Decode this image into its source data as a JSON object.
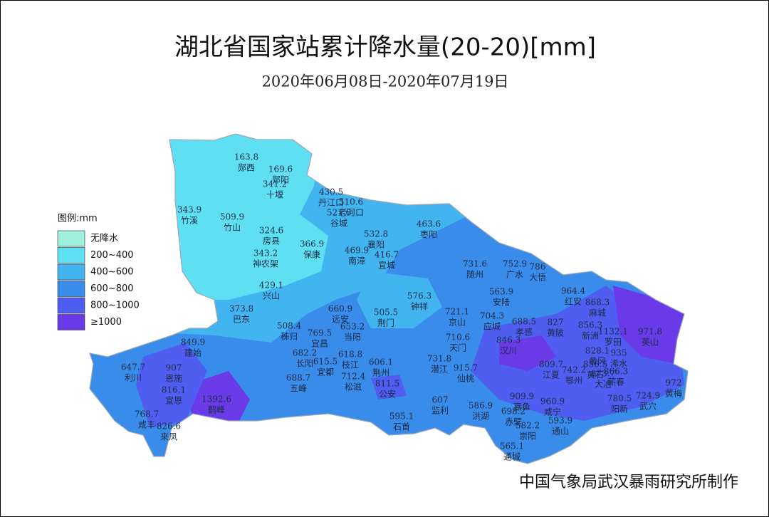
{
  "header": {
    "title": "湖北省国家站累计降水量(20-20)[mm]",
    "subtitle": "2020年06月08日-2020年07月19日"
  },
  "legend": {
    "title": "图例:mm",
    "items": [
      {
        "label": "无降水",
        "color": "#9ff0dc"
      },
      {
        "label": "200~400",
        "color": "#5fe0f2"
      },
      {
        "label": "400~600",
        "color": "#42b4f0"
      },
      {
        "label": "600~800",
        "color": "#3a8ceb"
      },
      {
        "label": "800~1000",
        "color": "#4f5ef0"
      },
      {
        "label": "≥1000",
        "color": "#6a3ae8"
      }
    ]
  },
  "stations": [
    {
      "value": "163.8",
      "name": "郧西"
    },
    {
      "value": "169.6",
      "name": "郧阳"
    },
    {
      "value": "341.2",
      "name": "十堰"
    },
    {
      "value": "343.9",
      "name": "竹溪"
    },
    {
      "value": "509.9",
      "name": "竹山"
    },
    {
      "value": "324.6",
      "name": "房县"
    },
    {
      "value": "366.9",
      "name": "保康"
    },
    {
      "value": "343.2",
      "name": "神农架"
    },
    {
      "value": "430.5",
      "name": "丹江口"
    },
    {
      "value": "510.6",
      "name": "老河口"
    },
    {
      "value": "521.6",
      "name": "谷城"
    },
    {
      "value": "532.8",
      "name": "襄阳"
    },
    {
      "value": "469.9",
      "name": "南漳"
    },
    {
      "value": "416.7",
      "name": "宜城"
    },
    {
      "value": "463.6",
      "name": "枣阳"
    },
    {
      "value": "429.1",
      "name": "兴山"
    },
    {
      "value": "373.8",
      "name": "巴东"
    },
    {
      "value": "508.4",
      "name": "秭归"
    },
    {
      "value": "660.9",
      "name": "远安"
    },
    {
      "value": "653.2",
      "name": "当阳"
    },
    {
      "value": "505.5",
      "name": "荆门"
    },
    {
      "value": "576.3",
      "name": "钟祥"
    },
    {
      "value": "769.5",
      "name": "宜昌"
    },
    {
      "value": "682.2",
      "name": "长阳"
    },
    {
      "value": "615.5",
      "name": "宜都"
    },
    {
      "value": "618.8",
      "name": "枝江"
    },
    {
      "value": "712.4",
      "name": "松滋"
    },
    {
      "value": "606.1",
      "name": "荆州"
    },
    {
      "value": "811.5",
      "name": "公安"
    },
    {
      "value": "688.7",
      "name": "五峰"
    },
    {
      "value": "849.9",
      "name": "建始"
    },
    {
      "value": "647.7",
      "name": "利川"
    },
    {
      "value": "907",
      "name": "恩施"
    },
    {
      "value": "816.1",
      "name": "宣恩"
    },
    {
      "value": "1392.6",
      "name": "鹤峰"
    },
    {
      "value": "768.7",
      "name": "咸丰"
    },
    {
      "value": "826.6",
      "name": "来凤"
    },
    {
      "value": "595.1",
      "name": "石首"
    },
    {
      "value": "607",
      "name": "监利"
    },
    {
      "value": "586.9",
      "name": "洪湖"
    },
    {
      "value": "731.8",
      "name": "潜江"
    },
    {
      "value": "710.6",
      "name": "天门"
    },
    {
      "value": "721.1",
      "name": "京山"
    },
    {
      "value": "731.6",
      "name": "随州"
    },
    {
      "value": "752.9",
      "name": "广水"
    },
    {
      "value": "786",
      "name": "大悟"
    },
    {
      "value": "563.9",
      "name": "安陆"
    },
    {
      "value": "704.3",
      "name": "应城"
    },
    {
      "value": "688.5",
      "name": "孝感"
    },
    {
      "value": "846.3",
      "name": "汉川"
    },
    {
      "value": "915.7",
      "name": "仙桃"
    },
    {
      "value": "964.4",
      "name": "红安"
    },
    {
      "value": "868.3",
      "name": "麻城"
    },
    {
      "value": "827",
      "name": "黄陂"
    },
    {
      "value": "856.3",
      "name": "新洲"
    },
    {
      "value": "1132.1",
      "name": "罗田"
    },
    {
      "value": "971.8",
      "name": "英山"
    },
    {
      "value": "828.1",
      "name": "黄冈"
    },
    {
      "value": "935",
      "name": "浠水"
    },
    {
      "value": "809.7",
      "name": "江夏"
    },
    {
      "value": "742.2",
      "name": "鄂州"
    },
    {
      "value": "856.5",
      "name": "黄石"
    },
    {
      "value": "873.7",
      "name": "大冶"
    },
    {
      "value": "866.3",
      "name": "蕲春"
    },
    {
      "value": "972",
      "name": "黄梅"
    },
    {
      "value": "780.5",
      "name": "阳新"
    },
    {
      "value": "724.9",
      "name": "武穴"
    },
    {
      "value": "909.9",
      "name": "嘉鱼"
    },
    {
      "value": "960.9",
      "name": "咸宁"
    },
    {
      "value": "698.2",
      "name": "赤壁"
    },
    {
      "value": "593.9",
      "name": "通山"
    },
    {
      "value": "582.2",
      "name": "崇阳"
    },
    {
      "value": "565.1",
      "name": "通城"
    }
  ],
  "footer": {
    "credit": "中国气象局武汉暴雨研究所制作"
  }
}
